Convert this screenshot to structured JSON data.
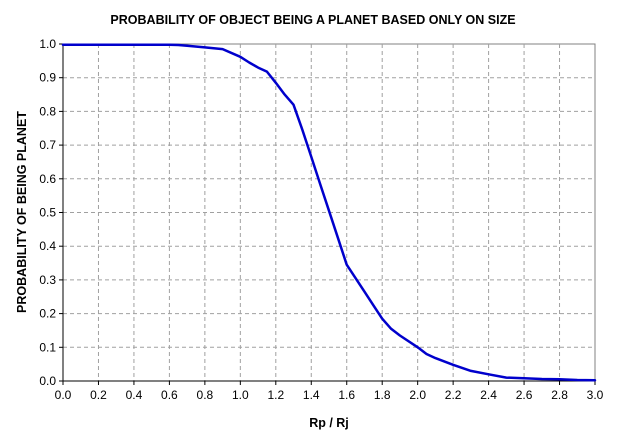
{
  "chart_data": {
    "type": "line",
    "title": "PROBABILITY OF OBJECT BEING A PLANET BASED ONLY ON SIZE",
    "xlabel": "Rp / Rj",
    "ylabel": "PROBABILITY OF BEING PLANET",
    "xlim": [
      0,
      3
    ],
    "ylim": [
      0,
      1
    ],
    "x_ticks": [
      "0.0",
      "0.2",
      "0.4",
      "0.6",
      "0.8",
      "1.0",
      "1.2",
      "1.4",
      "1.6",
      "1.8",
      "2.0",
      "2.2",
      "2.4",
      "2.6",
      "2.8",
      "3.0"
    ],
    "y_ticks": [
      "0.0",
      "0.1",
      "0.2",
      "0.3",
      "0.4",
      "0.5",
      "0.6",
      "0.7",
      "0.8",
      "0.9",
      "1.0"
    ],
    "grid": true,
    "line_color": "#0000cc",
    "series": [
      {
        "x": [
          0.0,
          0.1,
          0.2,
          0.3,
          0.4,
          0.5,
          0.6,
          0.65,
          0.7,
          0.8,
          0.9,
          1.0,
          1.05,
          1.1,
          1.15,
          1.2,
          1.25,
          1.3,
          1.35,
          1.4,
          1.45,
          1.5,
          1.55,
          1.6,
          1.65,
          1.7,
          1.75,
          1.8,
          1.85,
          1.9,
          2.0,
          2.05,
          2.1,
          2.2,
          2.3,
          2.4,
          2.5,
          2.6,
          2.7,
          2.8,
          2.9,
          3.0
        ],
        "y": [
          0.998,
          0.998,
          0.998,
          0.998,
          0.998,
          0.998,
          0.998,
          0.997,
          0.995,
          0.99,
          0.985,
          0.962,
          0.945,
          0.93,
          0.918,
          0.885,
          0.85,
          0.82,
          0.745,
          0.665,
          0.585,
          0.505,
          0.425,
          0.345,
          0.305,
          0.265,
          0.225,
          0.185,
          0.155,
          0.135,
          0.1,
          0.08,
          0.068,
          0.048,
          0.03,
          0.02,
          0.01,
          0.008,
          0.006,
          0.005,
          0.003,
          0.002
        ]
      }
    ]
  }
}
